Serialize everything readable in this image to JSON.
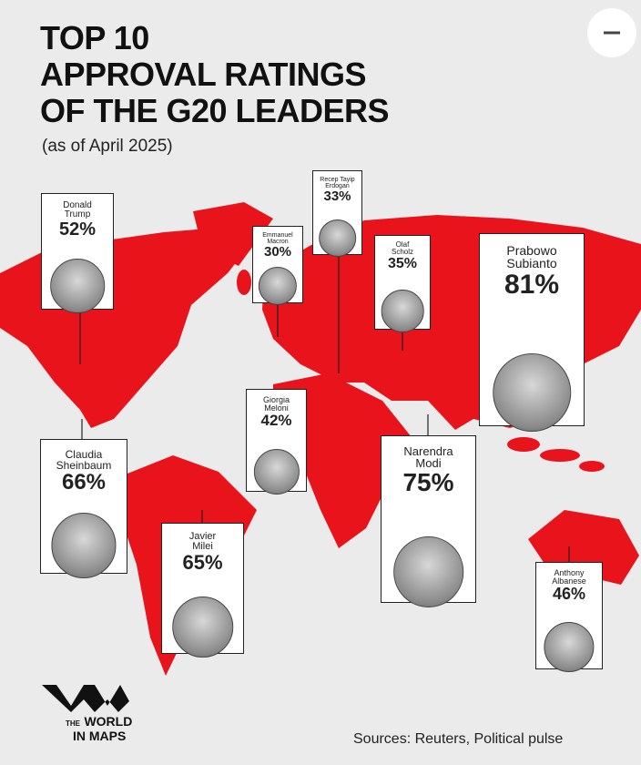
{
  "header": {
    "title": [
      "TOP 10",
      "APPROVAL RATINGS",
      "OF THE G20 LEADERS"
    ],
    "subtitle": "(as of April 2025)"
  },
  "leaders": [
    {
      "name": [
        "Donald",
        "Trump"
      ],
      "rating": "52%"
    },
    {
      "name": [
        "Emmanuel",
        "Macron"
      ],
      "rating": "30%"
    },
    {
      "name": [
        "Recep Tayip",
        "Erdogan"
      ],
      "rating": "33%"
    },
    {
      "name": [
        "Olaf",
        "Scholz"
      ],
      "rating": "35%"
    },
    {
      "name": [
        "Prabowo",
        "Subianto"
      ],
      "rating": "81%"
    },
    {
      "name": [
        "Giorgia",
        "Meloni"
      ],
      "rating": "42%"
    },
    {
      "name": [
        "Claudia",
        "Sheinbaum"
      ],
      "rating": "66%"
    },
    {
      "name": [
        "Narendra",
        "Modi"
      ],
      "rating": "75%"
    },
    {
      "name": [
        "Javier",
        "Milei"
      ],
      "rating": "65%"
    },
    {
      "name": [
        "Anthony",
        "Albanese"
      ],
      "rating": "46%"
    }
  ],
  "logo": {
    "small": "THE",
    "lines": [
      "WORLD",
      "IN MAPS"
    ]
  },
  "footer": {
    "sources": "Sources: Reuters, Political pulse"
  }
}
